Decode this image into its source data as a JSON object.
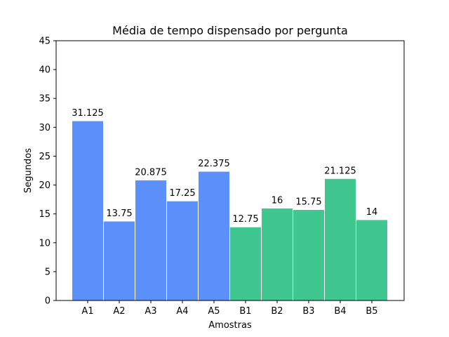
{
  "chart_data": {
    "type": "bar",
    "title": "Média de tempo dispensado por pergunta",
    "xlabel": "Amostras",
    "ylabel": "Segundos",
    "ylim": [
      0,
      45
    ],
    "yticks": [
      0,
      5,
      10,
      15,
      20,
      25,
      30,
      35,
      40,
      45
    ],
    "categories": [
      "A1",
      "A2",
      "A3",
      "A4",
      "A5",
      "B1",
      "B2",
      "B3",
      "B4",
      "B5"
    ],
    "values": [
      31.125,
      13.75,
      20.875,
      17.25,
      22.375,
      12.75,
      16,
      15.75,
      21.125,
      14
    ],
    "value_labels": [
      "31.125",
      "13.75",
      "20.875",
      "17.25",
      "22.375",
      "12.75",
      "16",
      "15.75",
      "21.125",
      "14"
    ],
    "bar_colors": [
      "#5b8ff9",
      "#5b8ff9",
      "#5b8ff9",
      "#5b8ff9",
      "#5b8ff9",
      "#40c790",
      "#40c790",
      "#40c790",
      "#40c790",
      "#40c790"
    ],
    "grid": false,
    "legend": "none"
  }
}
